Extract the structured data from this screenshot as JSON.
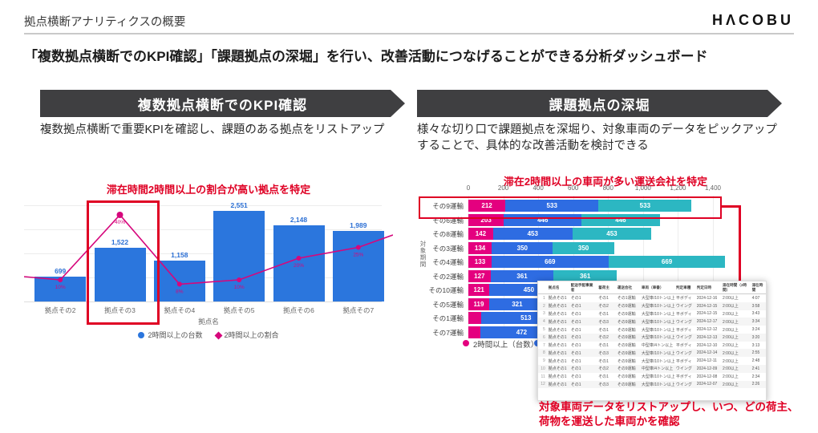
{
  "header": {
    "page_title": "拠点横断アナリティクスの概要",
    "logo_text": "HΛCOBU"
  },
  "headline": "「複数拠点横断でのKPI確認」「課題拠点の深堀」を行い、改善活動につなげることができる分析ダッシュボード",
  "left_section": {
    "banner_label": "複数拠点横断でのKPI確認",
    "description": "複数拠点横断で重要KPIを確認し、課題のある拠点をリストアップ",
    "red_annotation": "滞在時間2時間以上の割合が高い拠点を特定",
    "chart_data": {
      "type": "bar",
      "categories": [
        "拠点その2",
        "拠点その3",
        "拠点その4",
        "拠点その5",
        "拠点その6",
        "拠点その7"
      ],
      "bar_series": {
        "name": "2時間以上の台数",
        "values": [
          699,
          1522,
          1158,
          2551,
          2148,
          1989
        ],
        "labels": [
          "699",
          "1,522",
          "1,158",
          "2,551",
          "2,148",
          "1,989"
        ]
      },
      "line_series": {
        "name": "2時間以上の割合",
        "values_pct": [
          10,
          40,
          8,
          10,
          20,
          25
        ]
      },
      "xlabel": "拠点名",
      "ylim": [
        0,
        2800
      ],
      "grid": true,
      "legend_position": "bottom",
      "highlight_category": "拠点その3"
    }
  },
  "right_section": {
    "banner_label": "課題拠点の深堀",
    "description": "様々な切り口で課題拠点を深堀り、対象車両のデータをピックアップすることで、具体的な改善活動を検討できる",
    "red_annotation_top": "滞在2時間以上の車両が多い運送会社を特定",
    "red_annotation_bottom": "対象車両データをリストアップし、いつ、どの荷主、荷物を運送した車両かを確認",
    "chart_data": {
      "type": "bar",
      "orientation": "horizontal",
      "stacked": true,
      "categories": [
        "その9運輸",
        "その6運輸",
        "その8運輸",
        "その3運輸",
        "その4運輸",
        "その2運輸",
        "その10運輸",
        "その5運輸",
        "その1運輸",
        "その7運輸"
      ],
      "series": [
        {
          "name": "2時間以上（台数）",
          "color": "#e4007f",
          "values": [
            212,
            203,
            142,
            134,
            133,
            127,
            121,
            119,
            73,
            69
          ]
        },
        {
          "name": "",
          "color": "#2e6ce2",
          "values": [
            533,
            446,
            453,
            350,
            669,
            361,
            450,
            321,
            513,
            472
          ]
        },
        {
          "name": "",
          "color": "#2cb7c2",
          "values": [
            533,
            446,
            453,
            350,
            669,
            361,
            450,
            321,
            513,
            472
          ]
        }
      ],
      "x_ticks": [
        "0",
        "200",
        "400",
        "600",
        "800",
        "1,000",
        "1,200",
        "1,400"
      ],
      "x_max": 1400,
      "ylabel": "対象期間",
      "grid": true,
      "legend": [
        {
          "label": "2時間以上（台数）",
          "color": "#e4007f"
        },
        {
          "label": "",
          "color": "#2e6ce2"
        }
      ],
      "highlight_category": "その9運輸"
    },
    "table": {
      "headers": [
        "",
        "拠点名",
        "配送手配事業者",
        "着荷主",
        "運送会社",
        "車両（車番）",
        "判定車種",
        "判定日時",
        "滞在時間（2時間）",
        "滞在時間"
      ],
      "rows": [
        [
          "1",
          "拠点その1",
          "その1",
          "その1",
          "その1運輸",
          "大型車/10トン以上",
          "平ボディ",
          "2024-12-16",
          "2:00以上",
          "4:07"
        ],
        [
          "2",
          "拠点その1",
          "その1",
          "その2",
          "その9運輸",
          "大型車/10トン以上",
          "ウイング",
          "2024-12-15",
          "2:00以上",
          "3:58"
        ],
        [
          "3",
          "拠点その1",
          "その1",
          "その1",
          "その9運輸",
          "大型車/10トン以上",
          "平ボディ",
          "2024-12-15",
          "2:00以上",
          "3:43"
        ],
        [
          "4",
          "拠点その1",
          "その1",
          "その3",
          "その9運輸",
          "大型車/10トン以上",
          "ウイング",
          "2024-12-17",
          "2:00以上",
          "3:34"
        ],
        [
          "5",
          "拠点その1",
          "その1",
          "その1",
          "その9運輸",
          "大型車/10トン以上",
          "平ボディ",
          "2024-12-12",
          "2:00以上",
          "3:24"
        ],
        [
          "6",
          "拠点その1",
          "その1",
          "その2",
          "その9運輸",
          "大型車/10トン以上",
          "ウイング",
          "2024-12-13",
          "2:00以上",
          "3:20"
        ],
        [
          "7",
          "拠点その1",
          "その1",
          "その1",
          "その9運輸",
          "中型車/4トン以上",
          "平ボディ",
          "2024-12-10",
          "2:00以上",
          "3:13"
        ],
        [
          "8",
          "拠点その1",
          "その1",
          "その3",
          "その9運輸",
          "大型車/10トン以上",
          "ウイング",
          "2024-12-14",
          "2:00以上",
          "2:55"
        ],
        [
          "9",
          "拠点その1",
          "その1",
          "その1",
          "その9運輸",
          "大型車/10トン以上",
          "平ボディ",
          "2024-12-11",
          "2:00以上",
          "2:48"
        ],
        [
          "10",
          "拠点その1",
          "その1",
          "その2",
          "その9運輸",
          "中型車/4トン以上",
          "ウイング",
          "2024-12-09",
          "2:00以上",
          "2:41"
        ],
        [
          "11",
          "拠点その1",
          "その1",
          "その1",
          "その9運輸",
          "大型車/10トン以上",
          "平ボディ",
          "2024-12-08",
          "2:00以上",
          "2:34"
        ],
        [
          "12",
          "拠点その1",
          "その1",
          "その3",
          "その9運輸",
          "大型車/10トン以上",
          "ウイング",
          "2024-12-07",
          "2:00以上",
          "2:26"
        ]
      ]
    }
  },
  "colors": {
    "bar_blue": "#2b76dd",
    "line_magenta": "#d6077c",
    "stack_magenta": "#e4007f",
    "stack_blue": "#2e6ce2",
    "stack_teal": "#2cb7c2",
    "annotation_red": "#df0024",
    "banner_bg": "#3f3f41"
  }
}
